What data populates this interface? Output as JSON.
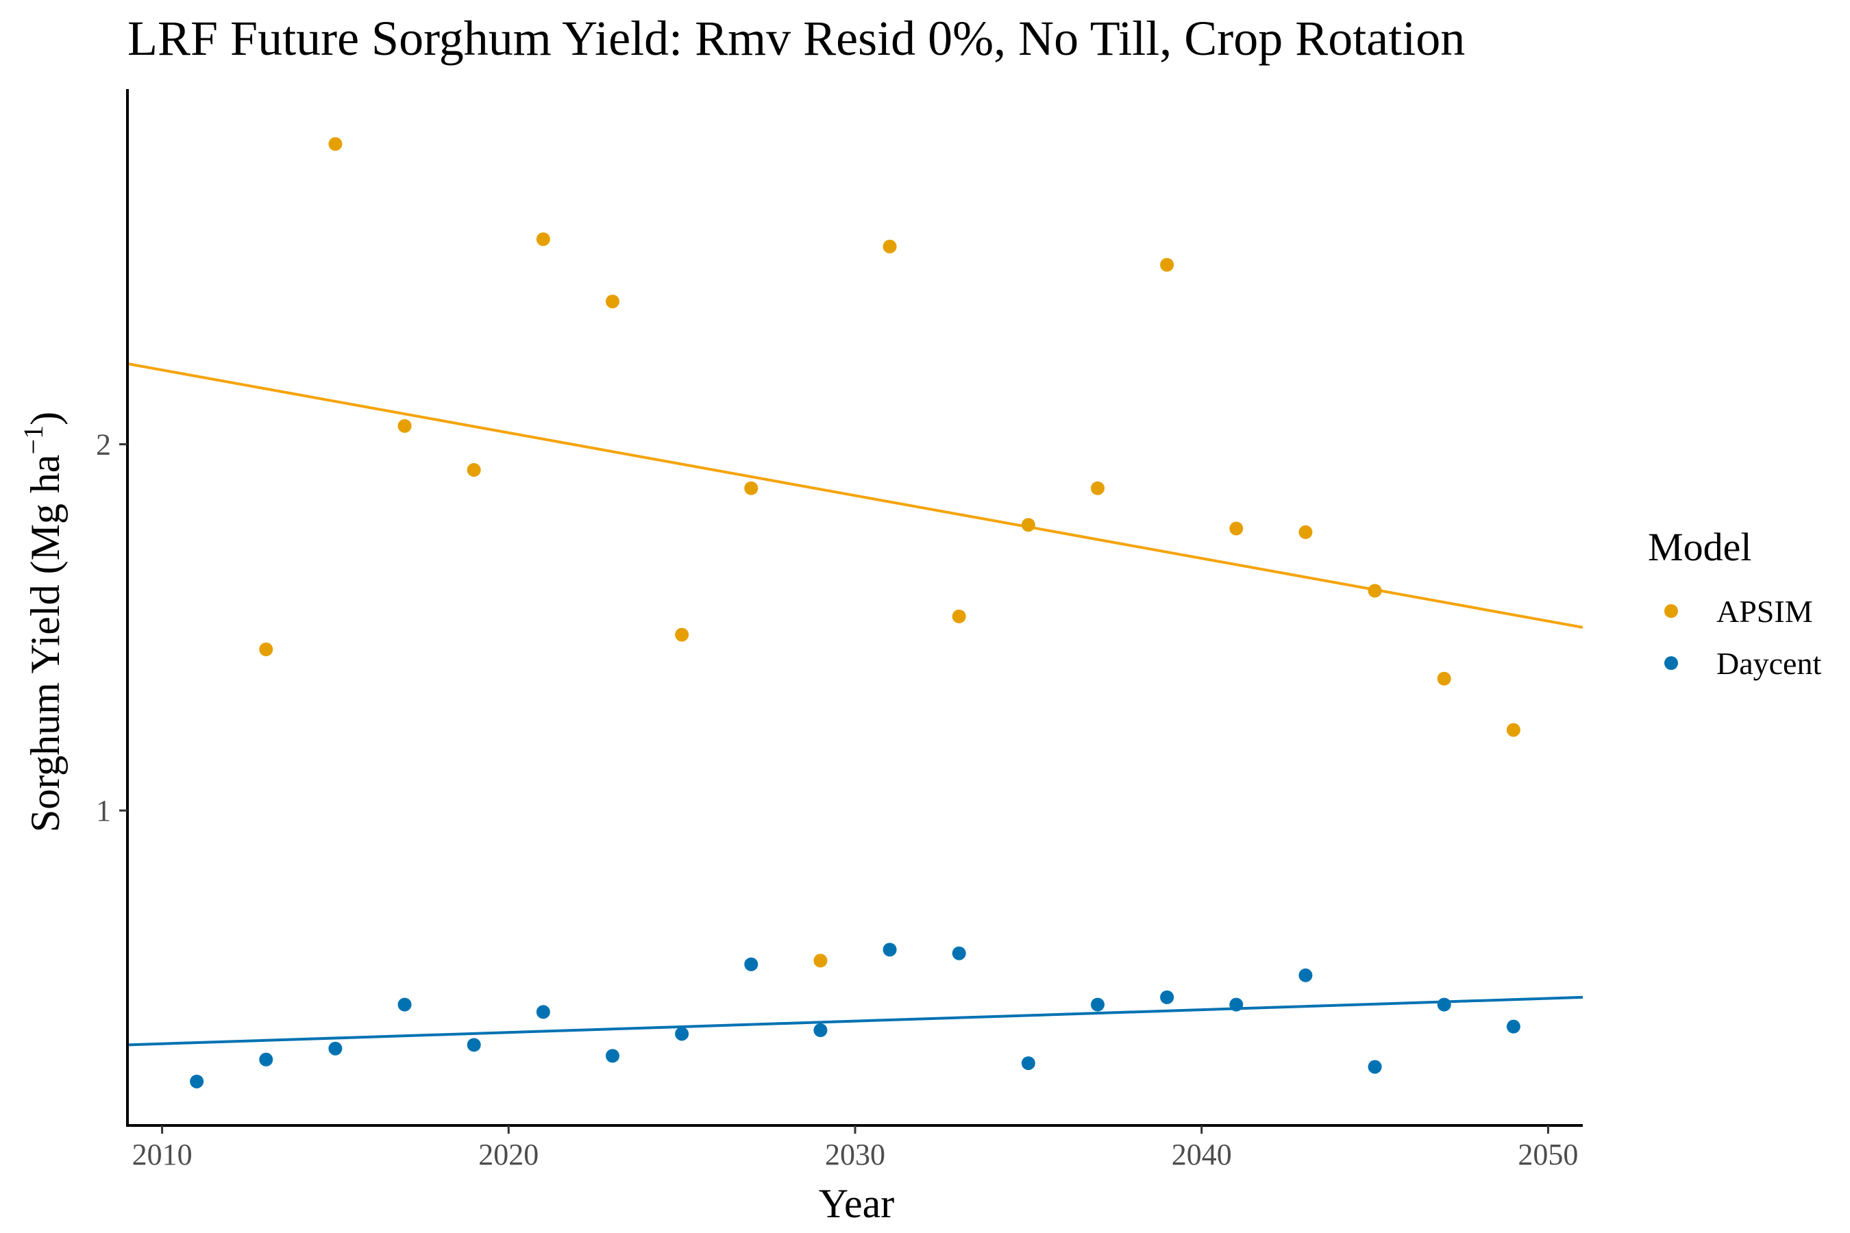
{
  "chart_data": {
    "type": "scatter",
    "title": "LRF Future Sorghum Yield:  Rmv Resid 0%, No Till, Crop Rotation",
    "xlabel": "Year",
    "ylabel_main": "Sorghum Yield (Mg ha",
    "ylabel_sup": "−1",
    "ylabel_close": ")",
    "xlim": [
      2009,
      2051
    ],
    "ylim": [
      0.14,
      2.97
    ],
    "x_ticks": [
      2010,
      2020,
      2030,
      2040,
      2050
    ],
    "y_ticks": [
      1,
      2
    ],
    "grid": false,
    "legend": {
      "title": "Model",
      "position": "right"
    },
    "series": [
      {
        "name": "APSIM",
        "color": "#E69F00",
        "trend_color": "#F5A30A",
        "trend": {
          "x": [
            2009,
            2051
          ],
          "y": [
            2.22,
            1.5
          ]
        },
        "x": [
          2013,
          2015,
          2017,
          2019,
          2021,
          2023,
          2025,
          2027,
          2029,
          2031,
          2033,
          2035,
          2037,
          2039,
          2041,
          2043,
          2045,
          2047,
          2049
        ],
        "y": [
          1.44,
          2.82,
          2.05,
          1.93,
          2.56,
          2.39,
          1.48,
          1.88,
          0.59,
          2.54,
          1.53,
          1.78,
          1.88,
          2.49,
          1.77,
          1.76,
          1.6,
          1.36,
          1.22
        ]
      },
      {
        "name": "Daycent",
        "color": "#0072B2",
        "trend_color": "#0072B2",
        "trend": {
          "x": [
            2009,
            2051
          ],
          "y": [
            0.36,
            0.49
          ]
        },
        "x": [
          2011,
          2013,
          2015,
          2017,
          2019,
          2021,
          2023,
          2025,
          2027,
          2029,
          2031,
          2033,
          2035,
          2037,
          2039,
          2041,
          2043,
          2045,
          2047,
          2049
        ],
        "y": [
          0.26,
          0.32,
          0.35,
          0.47,
          0.36,
          0.45,
          0.33,
          0.39,
          0.58,
          0.4,
          0.62,
          0.61,
          0.31,
          0.47,
          0.49,
          0.47,
          0.55,
          0.3,
          0.47,
          0.41
        ]
      }
    ]
  }
}
